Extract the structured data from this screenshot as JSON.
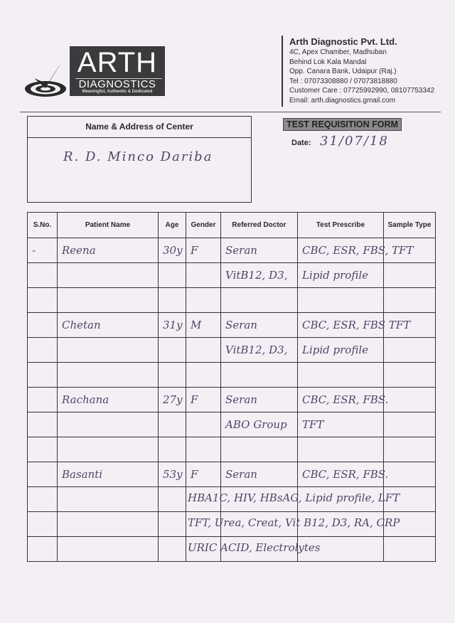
{
  "logo": {
    "name": "ARTH",
    "subtitle": "DIAGNOSTICS",
    "tagline": "Meaningful, Authentic & Dedicated"
  },
  "company": {
    "name": "Arth Diagnostic Pvt. Ltd.",
    "address": [
      "4C, Apex Chamber, Madhuban",
      "Behind Lok Kala Mandal",
      "Opp. Canara Bank, Udaipur (Raj.)"
    ],
    "tel": "Tel : 07073308880 / 07073818880",
    "care": "Customer Care : 07725992990, 08107753342",
    "email": "Email: arth.diagnostics.gmail.com"
  },
  "center": {
    "label": "Name & Address of Center",
    "value": "R. D. Minco Dariba"
  },
  "form": {
    "title": "TEST REQUISITION FORM",
    "date_label": "Date:",
    "date_value": "31/07/18"
  },
  "table": {
    "headers": [
      "S.No.",
      "Patient Name",
      "Age",
      "Gender",
      "Referred Doctor",
      "Test Prescribe",
      "Sample Type"
    ],
    "rows": [
      {
        "cells": [
          "-",
          "Reena",
          "30y",
          "F",
          "Seran",
          "CBC, ESR, FBS, TFT",
          ""
        ]
      },
      {
        "cells": [
          "",
          "",
          "",
          "",
          "VitB12, D3,",
          "Lipid profile",
          ""
        ]
      },
      {
        "cells": [
          "",
          "",
          "",
          "",
          "",
          "",
          ""
        ]
      },
      {
        "cells": [
          "",
          "Chetan",
          "31y",
          "M",
          "Seran",
          "CBC, ESR, FBS TFT",
          ""
        ]
      },
      {
        "cells": [
          "",
          "",
          "",
          "",
          "VitB12, D3,",
          "Lipid profile",
          ""
        ]
      },
      {
        "cells": [
          "",
          "",
          "",
          "",
          "",
          "",
          ""
        ]
      },
      {
        "cells": [
          "",
          "Rachana",
          "27y",
          "F",
          "Seran",
          "CBC, ESR, FBS.",
          ""
        ]
      },
      {
        "cells": [
          "",
          "",
          "",
          "",
          "ABO Group",
          "TFT",
          ""
        ]
      },
      {
        "cells": [
          "",
          "",
          "",
          "",
          "",
          "",
          ""
        ]
      },
      {
        "cells": [
          "",
          "Basanti",
          "53y",
          "F",
          "Seran",
          "CBC, ESR, FBS.",
          ""
        ]
      },
      {
        "cells": [
          "",
          "",
          "",
          "",
          "",
          "",
          ""
        ],
        "note": "HBA1C, HIV, HBsAG, Lipid profile, LFT"
      },
      {
        "cells": [
          "",
          "",
          "",
          "",
          "",
          "",
          ""
        ],
        "note": "TFT, Urea, Creat, Vit B12, D3, RA, CRP"
      },
      {
        "cells": [
          "",
          "",
          "",
          "",
          "",
          "",
          ""
        ],
        "note": "URIC ACID, Electrolytes"
      }
    ]
  }
}
